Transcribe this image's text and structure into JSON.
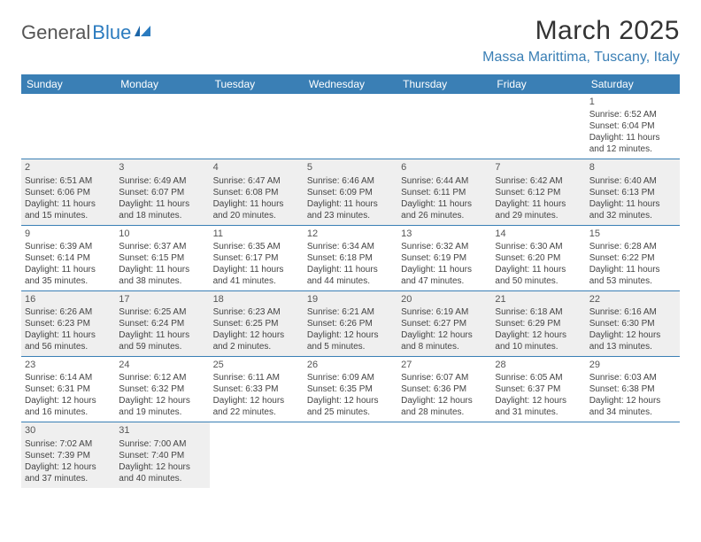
{
  "logo": {
    "text_dark": "General",
    "text_blue": "Blue"
  },
  "title": "March 2025",
  "location": "Massa Marittima, Tuscany, Italy",
  "colors": {
    "header_bg": "#3a7fb5",
    "header_text": "#ffffff",
    "location_text": "#3a7fb5",
    "title_text": "#333333",
    "body_text": "#444444",
    "shaded_bg": "#efefef",
    "border": "#3a7fb5",
    "logo_dark": "#555555",
    "logo_blue": "#2b7bbf"
  },
  "day_names": [
    "Sunday",
    "Monday",
    "Tuesday",
    "Wednesday",
    "Thursday",
    "Friday",
    "Saturday"
  ],
  "weeks": [
    [
      {
        "day": null
      },
      {
        "day": null
      },
      {
        "day": null
      },
      {
        "day": null
      },
      {
        "day": null
      },
      {
        "day": null
      },
      {
        "day": 1,
        "shaded": false,
        "sunrise": "Sunrise: 6:52 AM",
        "sunset": "Sunset: 6:04 PM",
        "daylight1": "Daylight: 11 hours",
        "daylight2": "and 12 minutes."
      }
    ],
    [
      {
        "day": 2,
        "shaded": true,
        "sunrise": "Sunrise: 6:51 AM",
        "sunset": "Sunset: 6:06 PM",
        "daylight1": "Daylight: 11 hours",
        "daylight2": "and 15 minutes."
      },
      {
        "day": 3,
        "shaded": true,
        "sunrise": "Sunrise: 6:49 AM",
        "sunset": "Sunset: 6:07 PM",
        "daylight1": "Daylight: 11 hours",
        "daylight2": "and 18 minutes."
      },
      {
        "day": 4,
        "shaded": true,
        "sunrise": "Sunrise: 6:47 AM",
        "sunset": "Sunset: 6:08 PM",
        "daylight1": "Daylight: 11 hours",
        "daylight2": "and 20 minutes."
      },
      {
        "day": 5,
        "shaded": true,
        "sunrise": "Sunrise: 6:46 AM",
        "sunset": "Sunset: 6:09 PM",
        "daylight1": "Daylight: 11 hours",
        "daylight2": "and 23 minutes."
      },
      {
        "day": 6,
        "shaded": true,
        "sunrise": "Sunrise: 6:44 AM",
        "sunset": "Sunset: 6:11 PM",
        "daylight1": "Daylight: 11 hours",
        "daylight2": "and 26 minutes."
      },
      {
        "day": 7,
        "shaded": true,
        "sunrise": "Sunrise: 6:42 AM",
        "sunset": "Sunset: 6:12 PM",
        "daylight1": "Daylight: 11 hours",
        "daylight2": "and 29 minutes."
      },
      {
        "day": 8,
        "shaded": true,
        "sunrise": "Sunrise: 6:40 AM",
        "sunset": "Sunset: 6:13 PM",
        "daylight1": "Daylight: 11 hours",
        "daylight2": "and 32 minutes."
      }
    ],
    [
      {
        "day": 9,
        "shaded": false,
        "sunrise": "Sunrise: 6:39 AM",
        "sunset": "Sunset: 6:14 PM",
        "daylight1": "Daylight: 11 hours",
        "daylight2": "and 35 minutes."
      },
      {
        "day": 10,
        "shaded": false,
        "sunrise": "Sunrise: 6:37 AM",
        "sunset": "Sunset: 6:15 PM",
        "daylight1": "Daylight: 11 hours",
        "daylight2": "and 38 minutes."
      },
      {
        "day": 11,
        "shaded": false,
        "sunrise": "Sunrise: 6:35 AM",
        "sunset": "Sunset: 6:17 PM",
        "daylight1": "Daylight: 11 hours",
        "daylight2": "and 41 minutes."
      },
      {
        "day": 12,
        "shaded": false,
        "sunrise": "Sunrise: 6:34 AM",
        "sunset": "Sunset: 6:18 PM",
        "daylight1": "Daylight: 11 hours",
        "daylight2": "and 44 minutes."
      },
      {
        "day": 13,
        "shaded": false,
        "sunrise": "Sunrise: 6:32 AM",
        "sunset": "Sunset: 6:19 PM",
        "daylight1": "Daylight: 11 hours",
        "daylight2": "and 47 minutes."
      },
      {
        "day": 14,
        "shaded": false,
        "sunrise": "Sunrise: 6:30 AM",
        "sunset": "Sunset: 6:20 PM",
        "daylight1": "Daylight: 11 hours",
        "daylight2": "and 50 minutes."
      },
      {
        "day": 15,
        "shaded": false,
        "sunrise": "Sunrise: 6:28 AM",
        "sunset": "Sunset: 6:22 PM",
        "daylight1": "Daylight: 11 hours",
        "daylight2": "and 53 minutes."
      }
    ],
    [
      {
        "day": 16,
        "shaded": true,
        "sunrise": "Sunrise: 6:26 AM",
        "sunset": "Sunset: 6:23 PM",
        "daylight1": "Daylight: 11 hours",
        "daylight2": "and 56 minutes."
      },
      {
        "day": 17,
        "shaded": true,
        "sunrise": "Sunrise: 6:25 AM",
        "sunset": "Sunset: 6:24 PM",
        "daylight1": "Daylight: 11 hours",
        "daylight2": "and 59 minutes."
      },
      {
        "day": 18,
        "shaded": true,
        "sunrise": "Sunrise: 6:23 AM",
        "sunset": "Sunset: 6:25 PM",
        "daylight1": "Daylight: 12 hours",
        "daylight2": "and 2 minutes."
      },
      {
        "day": 19,
        "shaded": true,
        "sunrise": "Sunrise: 6:21 AM",
        "sunset": "Sunset: 6:26 PM",
        "daylight1": "Daylight: 12 hours",
        "daylight2": "and 5 minutes."
      },
      {
        "day": 20,
        "shaded": true,
        "sunrise": "Sunrise: 6:19 AM",
        "sunset": "Sunset: 6:27 PM",
        "daylight1": "Daylight: 12 hours",
        "daylight2": "and 8 minutes."
      },
      {
        "day": 21,
        "shaded": true,
        "sunrise": "Sunrise: 6:18 AM",
        "sunset": "Sunset: 6:29 PM",
        "daylight1": "Daylight: 12 hours",
        "daylight2": "and 10 minutes."
      },
      {
        "day": 22,
        "shaded": true,
        "sunrise": "Sunrise: 6:16 AM",
        "sunset": "Sunset: 6:30 PM",
        "daylight1": "Daylight: 12 hours",
        "daylight2": "and 13 minutes."
      }
    ],
    [
      {
        "day": 23,
        "shaded": false,
        "sunrise": "Sunrise: 6:14 AM",
        "sunset": "Sunset: 6:31 PM",
        "daylight1": "Daylight: 12 hours",
        "daylight2": "and 16 minutes."
      },
      {
        "day": 24,
        "shaded": false,
        "sunrise": "Sunrise: 6:12 AM",
        "sunset": "Sunset: 6:32 PM",
        "daylight1": "Daylight: 12 hours",
        "daylight2": "and 19 minutes."
      },
      {
        "day": 25,
        "shaded": false,
        "sunrise": "Sunrise: 6:11 AM",
        "sunset": "Sunset: 6:33 PM",
        "daylight1": "Daylight: 12 hours",
        "daylight2": "and 22 minutes."
      },
      {
        "day": 26,
        "shaded": false,
        "sunrise": "Sunrise: 6:09 AM",
        "sunset": "Sunset: 6:35 PM",
        "daylight1": "Daylight: 12 hours",
        "daylight2": "and 25 minutes."
      },
      {
        "day": 27,
        "shaded": false,
        "sunrise": "Sunrise: 6:07 AM",
        "sunset": "Sunset: 6:36 PM",
        "daylight1": "Daylight: 12 hours",
        "daylight2": "and 28 minutes."
      },
      {
        "day": 28,
        "shaded": false,
        "sunrise": "Sunrise: 6:05 AM",
        "sunset": "Sunset: 6:37 PM",
        "daylight1": "Daylight: 12 hours",
        "daylight2": "and 31 minutes."
      },
      {
        "day": 29,
        "shaded": false,
        "sunrise": "Sunrise: 6:03 AM",
        "sunset": "Sunset: 6:38 PM",
        "daylight1": "Daylight: 12 hours",
        "daylight2": "and 34 minutes."
      }
    ],
    [
      {
        "day": 30,
        "shaded": true,
        "sunrise": "Sunrise: 7:02 AM",
        "sunset": "Sunset: 7:39 PM",
        "daylight1": "Daylight: 12 hours",
        "daylight2": "and 37 minutes."
      },
      {
        "day": 31,
        "shaded": true,
        "sunrise": "Sunrise: 7:00 AM",
        "sunset": "Sunset: 7:40 PM",
        "daylight1": "Daylight: 12 hours",
        "daylight2": "and 40 minutes."
      },
      {
        "day": null
      },
      {
        "day": null
      },
      {
        "day": null
      },
      {
        "day": null
      },
      {
        "day": null
      }
    ]
  ]
}
